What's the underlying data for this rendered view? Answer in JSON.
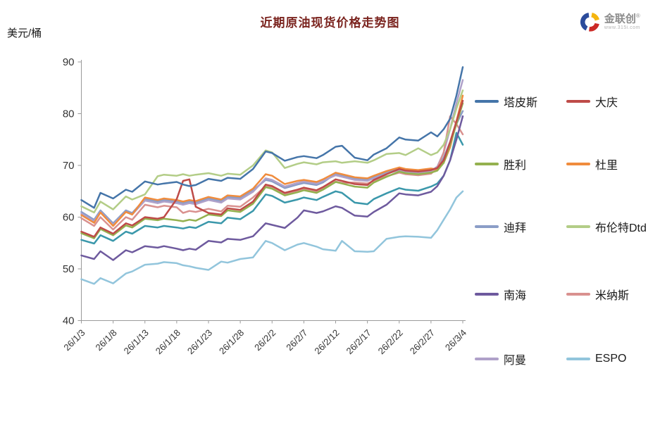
{
  "header": {
    "title": "近期原油现货价格走势图",
    "y_unit_label": "美元/桶"
  },
  "logo": {
    "brand": "金联创",
    "registered_mark": "®",
    "site": "www.315i.com",
    "mark_colors": {
      "blue": "#2b4b9b",
      "red": "#cc2a26",
      "yellow": "#f5b50f"
    }
  },
  "chart_data": {
    "type": "line",
    "title": "近期原油现货价格走势图",
    "ylabel": "美元/桶",
    "ylim": [
      40,
      90
    ],
    "y_ticks": [
      40,
      50,
      60,
      70,
      80,
      90
    ],
    "grid": false,
    "legend_position": "right",
    "axis_color": "#9a9a9a",
    "x_tick_days": [
      0,
      5,
      10,
      15,
      20,
      25,
      30,
      35,
      40,
      45,
      50,
      55,
      60
    ],
    "x_tick_labels": [
      "26/1/3",
      "26/1/8",
      "26/1/13",
      "26/1/18",
      "26/1/23",
      "26/1/28",
      "26/2/2",
      "26/2/7",
      "26/2/12",
      "26/2/17",
      "26/2/22",
      "26/2/27",
      "26/3/4"
    ],
    "days": [
      0,
      2,
      3,
      5,
      7,
      8,
      10,
      12,
      13,
      15,
      16,
      17,
      18,
      20,
      22,
      23,
      25,
      27,
      29,
      30,
      32,
      34,
      35,
      37,
      38,
      40,
      41,
      43,
      45,
      46,
      48,
      50,
      51,
      53,
      55,
      56,
      57,
      58,
      59,
      60
    ],
    "series": [
      {
        "name": "塔皮斯",
        "color": "#4575a9",
        "in_legend": true,
        "values": [
          63.3,
          61.8,
          64.7,
          63.6,
          65.3,
          64.9,
          66.9,
          66.3,
          66.5,
          66.8,
          66.3,
          66.0,
          66.2,
          67.4,
          67.0,
          67.6,
          67.4,
          69.3,
          72.7,
          72.4,
          70.9,
          71.6,
          71.8,
          71.4,
          72.0,
          73.6,
          73.8,
          71.5,
          71.0,
          72.1,
          73.3,
          75.4,
          75.0,
          74.8,
          76.4,
          75.6,
          77.0,
          79.0,
          83.5,
          89.0
        ]
      },
      {
        "name": "大庆",
        "color": "#be4b48",
        "in_legend": true,
        "values": [
          57.2,
          56.2,
          58.0,
          56.8,
          58.8,
          58.4,
          60.0,
          59.7,
          60.0,
          63.5,
          67.0,
          67.3,
          62.0,
          60.8,
          60.5,
          61.7,
          61.4,
          63.0,
          66.3,
          66.0,
          64.7,
          65.3,
          65.7,
          65.2,
          65.8,
          67.3,
          67.0,
          66.4,
          66.2,
          67.2,
          68.3,
          69.3,
          69.0,
          68.8,
          69.1,
          69.5,
          71.0,
          74.5,
          78.5,
          82.5
        ]
      },
      {
        "name": "胜利",
        "color": "#94b14f",
        "in_legend": true,
        "values": [
          56.9,
          55.9,
          57.7,
          56.5,
          58.4,
          58.0,
          59.7,
          59.4,
          59.7,
          59.4,
          59.2,
          59.5,
          59.3,
          60.5,
          60.2,
          61.3,
          61.0,
          62.6,
          65.8,
          65.5,
          64.2,
          64.8,
          65.2,
          64.7,
          65.3,
          66.8,
          66.5,
          65.9,
          65.7,
          66.7,
          67.8,
          68.8,
          68.5,
          68.3,
          68.6,
          69.0,
          70.5,
          74.0,
          78.0,
          82.0
        ]
      },
      {
        "name": "杜里",
        "color": "#f08c3d",
        "in_legend": true,
        "values": [
          60.4,
          58.9,
          60.9,
          58.3,
          61.0,
          60.5,
          63.8,
          63.3,
          63.6,
          63.3,
          63.0,
          63.3,
          63.1,
          63.9,
          63.4,
          64.2,
          64.0,
          65.5,
          68.3,
          68.0,
          66.4,
          67.0,
          67.2,
          66.8,
          67.3,
          68.6,
          68.3,
          67.7,
          67.5,
          68.0,
          68.9,
          69.6,
          69.3,
          69.1,
          69.4,
          69.2,
          70.5,
          73.5,
          78.5,
          83.5
        ]
      },
      {
        "name": "迪拜",
        "color": "#8b9dc7",
        "in_legend": true,
        "values": [
          61.0,
          59.5,
          61.3,
          58.8,
          61.3,
          60.8,
          63.5,
          63.0,
          63.3,
          63.0,
          62.7,
          63.0,
          62.8,
          63.6,
          63.1,
          63.9,
          63.7,
          65.2,
          67.2,
          66.9,
          65.6,
          66.3,
          66.6,
          66.2,
          66.7,
          68.4,
          68.1,
          67.5,
          67.3,
          67.8,
          68.7,
          69.4,
          69.1,
          68.9,
          69.2,
          69.5,
          71.5,
          74.5,
          78.0,
          80.5
        ]
      },
      {
        "name": "布伦特Dtd",
        "color": "#b3cd87",
        "in_legend": true,
        "values": [
          62.1,
          60.9,
          63.0,
          61.5,
          64.0,
          63.4,
          64.4,
          67.9,
          68.2,
          68.0,
          68.3,
          68.0,
          68.2,
          68.5,
          68.0,
          68.4,
          68.2,
          70.0,
          72.9,
          72.5,
          69.5,
          70.3,
          70.6,
          70.2,
          70.6,
          70.8,
          70.5,
          70.8,
          70.5,
          71.0,
          72.2,
          72.4,
          72.0,
          73.3,
          72.0,
          72.5,
          74.0,
          77.0,
          81.0,
          84.5
        ]
      },
      {
        "name": "南海",
        "color": "#6e5a9e",
        "in_legend": true,
        "values": [
          52.6,
          51.9,
          53.4,
          51.7,
          53.6,
          53.2,
          54.4,
          54.1,
          54.4,
          53.9,
          53.6,
          53.9,
          53.7,
          55.4,
          55.1,
          55.8,
          55.6,
          56.3,
          58.8,
          58.5,
          57.9,
          59.9,
          61.3,
          60.8,
          61.1,
          62.1,
          61.8,
          60.3,
          60.1,
          61.0,
          62.4,
          64.6,
          64.4,
          64.2,
          64.9,
          66.0,
          68.0,
          71.0,
          75.0,
          79.5
        ]
      },
      {
        "name": "米纳斯",
        "color": "#d9918f",
        "in_legend": true,
        "values": [
          59.8,
          58.3,
          60.0,
          57.6,
          60.0,
          59.5,
          62.4,
          61.9,
          62.2,
          61.9,
          60.8,
          61.2,
          61.0,
          61.6,
          61.1,
          62.2,
          62.0,
          63.8,
          66.0,
          65.7,
          64.4,
          65.1,
          65.4,
          65.0,
          65.5,
          66.9,
          66.6,
          66.7,
          66.5,
          67.0,
          67.9,
          68.6,
          68.3,
          68.1,
          68.4,
          69.5,
          72.5,
          79.5,
          78.0,
          76.0
        ]
      },
      {
        "name": "阿曼",
        "color": "#afa1c9",
        "in_legend": true,
        "values": [
          60.7,
          59.2,
          61.0,
          58.5,
          61.0,
          60.5,
          63.2,
          62.7,
          63.0,
          62.7,
          62.4,
          62.7,
          62.5,
          63.3,
          62.8,
          63.6,
          63.4,
          64.9,
          67.5,
          67.2,
          65.9,
          66.6,
          66.9,
          66.5,
          67.0,
          68.1,
          67.8,
          67.2,
          67.0,
          67.5,
          68.4,
          69.1,
          68.8,
          68.6,
          68.9,
          69.8,
          72.5,
          77.0,
          82.0,
          86.5
        ]
      },
      {
        "name": "ESPO",
        "color": "#92c5dc",
        "in_legend": true,
        "values": [
          48.0,
          47.1,
          48.2,
          47.2,
          49.1,
          49.5,
          50.8,
          51.0,
          51.3,
          51.1,
          50.7,
          50.5,
          50.2,
          49.8,
          51.4,
          51.2,
          51.9,
          52.2,
          55.4,
          55.0,
          53.6,
          54.7,
          55.0,
          54.3,
          53.8,
          53.5,
          55.4,
          53.4,
          53.3,
          53.4,
          55.8,
          56.2,
          56.3,
          56.2,
          56.0,
          57.5,
          59.5,
          61.5,
          63.8,
          65.0
        ]
      },
      {
        "name": "",
        "color": "#3b98ab",
        "in_legend": false,
        "values": [
          55.6,
          54.9,
          56.5,
          55.4,
          57.2,
          56.8,
          58.3,
          58.0,
          58.3,
          58.0,
          57.8,
          58.1,
          57.9,
          59.1,
          58.8,
          59.9,
          59.6,
          61.2,
          64.4,
          64.1,
          62.8,
          63.4,
          63.8,
          63.3,
          63.9,
          65.0,
          64.7,
          62.8,
          62.5,
          63.5,
          64.6,
          65.6,
          65.3,
          65.1,
          65.9,
          66.5,
          68.0,
          71.0,
          76.3,
          74.0
        ]
      }
    ],
    "draw_order": [
      4,
      8,
      7,
      3,
      10,
      2,
      1,
      5,
      6,
      9,
      0
    ],
    "legend_rows": [
      133,
      222,
      311,
      407,
      499
    ],
    "legend_col_lefts": [
      0,
      130
    ]
  }
}
